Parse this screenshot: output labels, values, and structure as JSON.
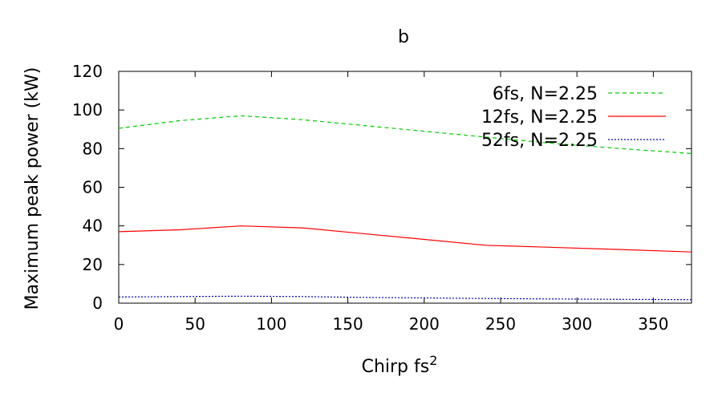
{
  "chart_data": {
    "type": "line",
    "title": "b",
    "xlabel": "Chirp fs",
    "xlabel_superscript": "2",
    "ylabel": "Maximum peak power (kW)",
    "xlim": [
      0,
      375
    ],
    "ylim": [
      0,
      120
    ],
    "xticks": [
      0,
      50,
      100,
      150,
      200,
      250,
      300,
      350
    ],
    "yticks": [
      0,
      20,
      40,
      60,
      80,
      100,
      120
    ],
    "grid": false,
    "legend_position": "top-right",
    "series": [
      {
        "name": "6fs, N=2.25",
        "color": "#00cc00",
        "dash": "dashed",
        "x": [
          0,
          40,
          80,
          120,
          160,
          200,
          240,
          280,
          320,
          375
        ],
        "y": [
          90.5,
          94.5,
          97,
          95,
          92,
          89,
          86,
          83,
          80.5,
          77.5
        ]
      },
      {
        "name": "12fs, N=2.25",
        "color": "#ff0000",
        "dash": "solid",
        "x": [
          0,
          40,
          80,
          120,
          160,
          200,
          240,
          280,
          320,
          375
        ],
        "y": [
          37,
          38,
          40,
          39,
          36,
          33,
          30,
          29,
          28,
          26.5
        ]
      },
      {
        "name": "52fs, N=2.25",
        "color": "#0000cc",
        "dash": "dotted",
        "x": [
          0,
          40,
          80,
          120,
          160,
          200,
          240,
          280,
          320,
          375
        ],
        "y": [
          3.2,
          3.4,
          3.6,
          3.4,
          3.0,
          2.7,
          2.4,
          2.2,
          2.0,
          1.8
        ]
      }
    ]
  }
}
